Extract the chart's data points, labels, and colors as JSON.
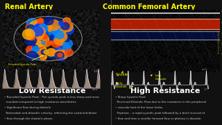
{
  "bg_color": "#111111",
  "left_title": "Renal Artery",
  "right_title": "Common Femoral Artery",
  "left_label": "Low Resistance",
  "right_label": "High Resistance",
  "left_bullets": [
    "Rounded Systolic Peak : The systolic peak is less sharp and more",
    "rounded compared to high resistance waveforms.",
    "Significant flow during diastole",
    "Noticeable end-diastolic velocity, reflecting the sustained blood",
    "flow through the diastolic phase."
  ],
  "right_bullets": [
    "Sharp Systolic Peak",
    "Reversed Diastolic Flow due to the resistance in the peripheral",
    "vascular bed of the lower limbs.",
    "Triphasic - a rapid systolic peak followed by a brief reversal of",
    "flow and then a smaller forward flow or plateau in diastole."
  ],
  "title_color": "#ffff00",
  "label_color": "#ffffff",
  "bullet_color": "#cccccc",
  "waveform_color_low": "#ddbbaa",
  "waveform_color_high": "#cccccc",
  "annotation_color": "#ffff00",
  "divider_color": "#444444"
}
